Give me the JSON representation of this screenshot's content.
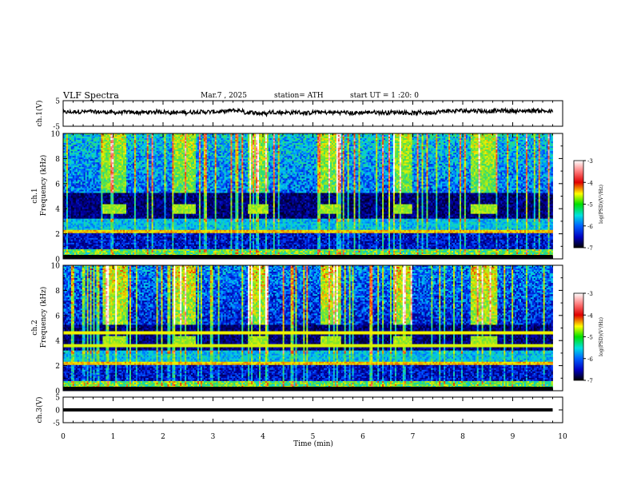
{
  "header": {
    "title": "VLF  Spectra",
    "date": "Mar.7  , 2025",
    "station": "station= ATH",
    "start": "start  UT  =    1  :20: 0"
  },
  "chart_data": [
    {
      "type": "line",
      "panel": "ch1-waveform",
      "ylabel": "ch.1(V)",
      "ylim": [
        -5,
        5
      ],
      "yticks": [
        5,
        -5
      ],
      "x_range_min": [
        0,
        9.8
      ],
      "description_values": "noisy waveform centered slightly above 0 V"
    },
    {
      "type": "heatmap",
      "panel": "ch1-spectrogram",
      "ylabel": "ch.1\nFrequency  (kHz)",
      "ylabel_channel": "ch.1",
      "ylabel_axis": "Frequency  (kHz)",
      "ylim": [
        0,
        10
      ],
      "yticks": [
        0,
        2,
        4,
        6,
        8,
        10
      ],
      "xlim": [
        0,
        10
      ],
      "colorbar": {
        "label": "log(PSD)(V²/Hz)",
        "range": [
          -7,
          -3
        ],
        "ticks": [
          -3,
          -4,
          -5,
          -6,
          -7
        ]
      }
    },
    {
      "type": "heatmap",
      "panel": "ch2-spectrogram",
      "ylabel_channel": "ch.2",
      "ylabel_axis": "Frequency  (kHz)",
      "ylim": [
        0,
        10
      ],
      "yticks": [
        0,
        2,
        4,
        6,
        8,
        10
      ],
      "xlim": [
        0,
        10
      ],
      "colorbar": {
        "label": "log(PSD)(V²/Hz)",
        "range": [
          -7,
          -3
        ],
        "ticks": [
          -3,
          -4,
          -5,
          -6,
          -7
        ]
      }
    },
    {
      "type": "line",
      "panel": "ch3-waveform",
      "ylabel": "ch.3(V)",
      "ylim": [
        -5,
        5
      ],
      "yticks": [
        5,
        0,
        -5
      ],
      "xlabel": "Time  (min)",
      "xlim": [
        0,
        10
      ],
      "xticks": [
        0,
        1,
        2,
        3,
        4,
        5,
        6,
        7,
        8,
        9,
        10
      ]
    }
  ],
  "colors": {
    "background": "#ffffff",
    "axis": "#000000",
    "trace": "#000000"
  }
}
